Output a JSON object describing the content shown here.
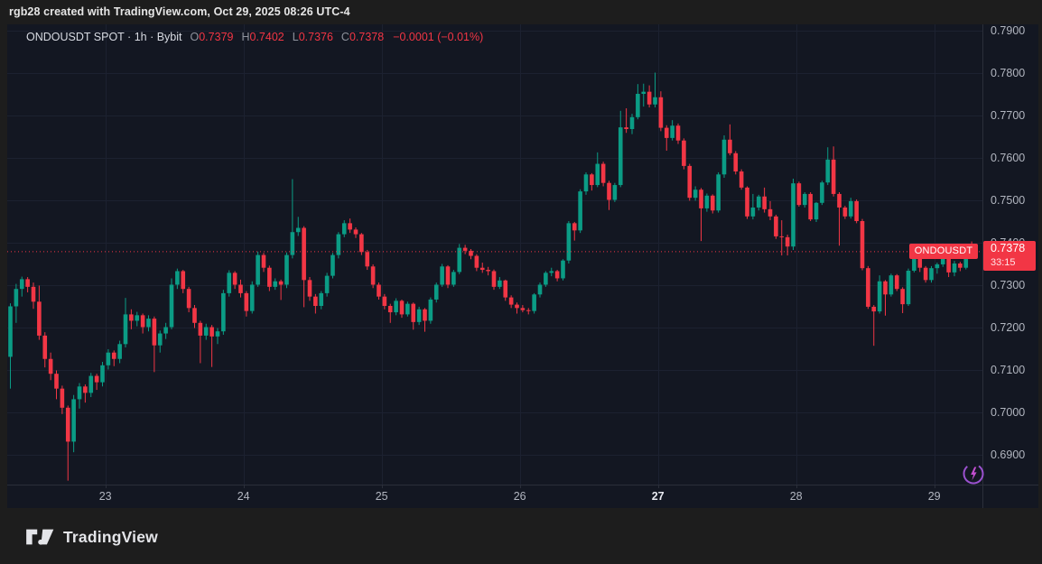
{
  "attribution": {
    "text": "rgb28 created with TradingView.com, Oct 29, 2025 08:26 UTC-4"
  },
  "legend": {
    "symbol_title": "ONDOUSDT SPOT · 1h · Bybit",
    "open_label": "O",
    "open_value": "0.7379",
    "high_label": "H",
    "high_value": "0.7402",
    "low_label": "L",
    "low_value": "0.7376",
    "close_label": "C",
    "close_value": "0.7378",
    "change_text": "−0.0001 (−0.01%)"
  },
  "price_line_label": {
    "symbol": "ONDOUSDT",
    "price": "0.7378",
    "countdown": "33:15"
  },
  "footer": {
    "brand_name": "TradingView"
  },
  "chart_data": {
    "type": "candlestick",
    "symbol": "ONDOUSDT",
    "market": "SPOT",
    "interval": "1h",
    "exchange": "Bybit",
    "current_bar": {
      "open": 0.7379,
      "high": 0.7402,
      "low": 0.7376,
      "close": 0.7378,
      "change": -0.0001,
      "change_pct": "-0.01%"
    },
    "last_price": 0.7378,
    "countdown": "33:15",
    "y_axis": {
      "top_value": 0.79,
      "ticks": [
        {
          "value": 0.79,
          "label": "0.7900"
        },
        {
          "value": 0.78,
          "label": "0.7800"
        },
        {
          "value": 0.77,
          "label": "0.7700"
        },
        {
          "value": 0.76,
          "label": "0.7600"
        },
        {
          "value": 0.75,
          "label": "0.7500"
        },
        {
          "value": 0.74,
          "label": "0.7400"
        },
        {
          "value": 0.73,
          "label": "0.7300"
        },
        {
          "value": 0.72,
          "label": "0.7200"
        },
        {
          "value": 0.71,
          "label": "0.7100"
        },
        {
          "value": 0.7,
          "label": "0.7000"
        },
        {
          "value": 0.69,
          "label": "0.6900"
        }
      ]
    },
    "x_axis": {
      "first_index": 16.5,
      "step": 24,
      "ticks": [
        {
          "label": "23",
          "bold": false
        },
        {
          "label": "24",
          "bold": false
        },
        {
          "label": "25",
          "bold": false
        },
        {
          "label": "26",
          "bold": false
        },
        {
          "label": "27",
          "bold": true
        },
        {
          "label": "28",
          "bold": false
        },
        {
          "label": "29",
          "bold": false
        }
      ]
    },
    "colors": {
      "up": "#0b9c85",
      "down": "#f23645",
      "grid": "#1c2130",
      "separator": "#2a2e39",
      "axis_text": "#b2b6c0",
      "axis_text_bold": "#e8eaf0",
      "price_line": "#f23645",
      "label_bg": "#f23645"
    },
    "candles": [
      [
        0.713,
        0.7256,
        0.7055,
        0.7249
      ],
      [
        0.7249,
        0.7302,
        0.721,
        0.729
      ],
      [
        0.729,
        0.7319,
        0.7272,
        0.7313
      ],
      [
        0.7313,
        0.7318,
        0.7282,
        0.7295
      ],
      [
        0.7295,
        0.7305,
        0.7243,
        0.726
      ],
      [
        0.726,
        0.7298,
        0.717,
        0.718
      ],
      [
        0.718,
        0.7188,
        0.7105,
        0.7125
      ],
      [
        0.7125,
        0.714,
        0.7075,
        0.709
      ],
      [
        0.709,
        0.7098,
        0.703,
        0.7055
      ],
      [
        0.7055,
        0.7062,
        0.6995,
        0.701
      ],
      [
        0.701,
        0.7015,
        0.6838,
        0.693
      ],
      [
        0.693,
        0.704,
        0.6905,
        0.703
      ],
      [
        0.703,
        0.7068,
        0.7008,
        0.706
      ],
      [
        0.706,
        0.7065,
        0.7022,
        0.7045
      ],
      [
        0.7045,
        0.7092,
        0.7035,
        0.7085
      ],
      [
        0.7085,
        0.709,
        0.7052,
        0.707
      ],
      [
        0.707,
        0.7118,
        0.706,
        0.711
      ],
      [
        0.711,
        0.7148,
        0.71,
        0.714
      ],
      [
        0.714,
        0.7145,
        0.7108,
        0.7125
      ],
      [
        0.7125,
        0.7168,
        0.7115,
        0.716
      ],
      [
        0.716,
        0.7269,
        0.7152,
        0.723
      ],
      [
        0.723,
        0.7242,
        0.7195,
        0.7215
      ],
      [
        0.7215,
        0.7236,
        0.7202,
        0.7228
      ],
      [
        0.7228,
        0.7232,
        0.7185,
        0.72
      ],
      [
        0.72,
        0.7228,
        0.719,
        0.722
      ],
      [
        0.722,
        0.7225,
        0.7094,
        0.7157
      ],
      [
        0.7157,
        0.7192,
        0.714,
        0.7185
      ],
      [
        0.7185,
        0.721,
        0.7172,
        0.72
      ],
      [
        0.72,
        0.7315,
        0.7195,
        0.73
      ],
      [
        0.73,
        0.7338,
        0.729,
        0.7332
      ],
      [
        0.7332,
        0.7335,
        0.728,
        0.729
      ],
      [
        0.729,
        0.7295,
        0.7235,
        0.7245
      ],
      [
        0.7245,
        0.7252,
        0.7198,
        0.721
      ],
      [
        0.721,
        0.7215,
        0.7115,
        0.718
      ],
      [
        0.718,
        0.7208,
        0.717,
        0.72
      ],
      [
        0.72,
        0.7205,
        0.7106,
        0.7178
      ],
      [
        0.7178,
        0.7198,
        0.716,
        0.719
      ],
      [
        0.719,
        0.7288,
        0.7182,
        0.728
      ],
      [
        0.728,
        0.7334,
        0.7272,
        0.7328
      ],
      [
        0.7328,
        0.7332,
        0.729,
        0.73
      ],
      [
        0.73,
        0.7312,
        0.727,
        0.728
      ],
      [
        0.728,
        0.7285,
        0.7225,
        0.7238
      ],
      [
        0.7238,
        0.7308,
        0.7232,
        0.73
      ],
      [
        0.73,
        0.7378,
        0.7295,
        0.737
      ],
      [
        0.737,
        0.7375,
        0.733,
        0.734
      ],
      [
        0.734,
        0.7345,
        0.7285,
        0.7295
      ],
      [
        0.7295,
        0.7315,
        0.7288,
        0.7308
      ],
      [
        0.7308,
        0.7312,
        0.7264,
        0.73
      ],
      [
        0.73,
        0.7376,
        0.7292,
        0.737
      ],
      [
        0.737,
        0.7549,
        0.7362,
        0.7424
      ],
      [
        0.7424,
        0.746,
        0.7415,
        0.7434
      ],
      [
        0.7434,
        0.7438,
        0.7247,
        0.7311
      ],
      [
        0.7311,
        0.7318,
        0.7262,
        0.7272
      ],
      [
        0.7272,
        0.7278,
        0.7232,
        0.725
      ],
      [
        0.725,
        0.7285,
        0.7242,
        0.728
      ],
      [
        0.728,
        0.7328,
        0.7272,
        0.7321
      ],
      [
        0.7321,
        0.7375,
        0.7315,
        0.737
      ],
      [
        0.737,
        0.7424,
        0.7362,
        0.7419
      ],
      [
        0.7419,
        0.7452,
        0.7412,
        0.7445
      ],
      [
        0.7445,
        0.7456,
        0.7422,
        0.743
      ],
      [
        0.743,
        0.7435,
        0.741,
        0.7419
      ],
      [
        0.7419,
        0.7422,
        0.737,
        0.7377
      ],
      [
        0.7377,
        0.7382,
        0.7335,
        0.7343
      ],
      [
        0.7343,
        0.7348,
        0.7292,
        0.73
      ],
      [
        0.73,
        0.7305,
        0.7265,
        0.7272
      ],
      [
        0.7272,
        0.7278,
        0.7242,
        0.725
      ],
      [
        0.725,
        0.7255,
        0.721,
        0.7235
      ],
      [
        0.7235,
        0.7268,
        0.7228,
        0.7262
      ],
      [
        0.7262,
        0.7265,
        0.7222,
        0.723
      ],
      [
        0.723,
        0.726,
        0.7225,
        0.7255
      ],
      [
        0.7255,
        0.7258,
        0.7194,
        0.7212
      ],
      [
        0.7212,
        0.7248,
        0.7205,
        0.7242
      ],
      [
        0.7242,
        0.7245,
        0.7189,
        0.7215
      ],
      [
        0.7215,
        0.727,
        0.7208,
        0.7265
      ],
      [
        0.7265,
        0.7305,
        0.7258,
        0.73
      ],
      [
        0.73,
        0.7349,
        0.7295,
        0.7343
      ],
      [
        0.7343,
        0.7346,
        0.7292,
        0.73
      ],
      [
        0.73,
        0.7335,
        0.7295,
        0.733
      ],
      [
        0.733,
        0.7396,
        0.7325,
        0.7387
      ],
      [
        0.7387,
        0.7394,
        0.7372,
        0.738
      ],
      [
        0.738,
        0.7384,
        0.736,
        0.7368
      ],
      [
        0.7368,
        0.7372,
        0.7332,
        0.734
      ],
      [
        0.734,
        0.7352,
        0.7328,
        0.7335
      ],
      [
        0.7335,
        0.7342,
        0.7322,
        0.7332
      ],
      [
        0.7332,
        0.7336,
        0.7288,
        0.7295
      ],
      [
        0.7295,
        0.7318,
        0.729,
        0.731
      ],
      [
        0.731,
        0.7312,
        0.7262,
        0.727
      ],
      [
        0.727,
        0.7275,
        0.7245,
        0.7253
      ],
      [
        0.7253,
        0.7258,
        0.7232,
        0.7245
      ],
      [
        0.7245,
        0.7252,
        0.7235,
        0.724
      ],
      [
        0.724,
        0.7245,
        0.723,
        0.7238
      ],
      [
        0.7238,
        0.728,
        0.7232,
        0.7277
      ],
      [
        0.7277,
        0.7305,
        0.727,
        0.73
      ],
      [
        0.73,
        0.7332,
        0.7295,
        0.7328
      ],
      [
        0.7328,
        0.734,
        0.732,
        0.7332
      ],
      [
        0.7332,
        0.7335,
        0.7308,
        0.7315
      ],
      [
        0.7315,
        0.736,
        0.731,
        0.7357
      ],
      [
        0.7357,
        0.745,
        0.735,
        0.7445
      ],
      [
        0.7445,
        0.7448,
        0.7404,
        0.7428
      ],
      [
        0.7428,
        0.7525,
        0.7422,
        0.752
      ],
      [
        0.752,
        0.7565,
        0.7512,
        0.756
      ],
      [
        0.756,
        0.7563,
        0.7522,
        0.7535
      ],
      [
        0.7535,
        0.7612,
        0.753,
        0.7585
      ],
      [
        0.7585,
        0.759,
        0.7532,
        0.754
      ],
      [
        0.754,
        0.7545,
        0.7476,
        0.75
      ],
      [
        0.75,
        0.754,
        0.7495,
        0.7535
      ],
      [
        0.7535,
        0.771,
        0.753,
        0.7671
      ],
      [
        0.7671,
        0.7716,
        0.7658,
        0.7667
      ],
      [
        0.7667,
        0.7703,
        0.7655,
        0.7695
      ],
      [
        0.7695,
        0.7773,
        0.769,
        0.775
      ],
      [
        0.775,
        0.7774,
        0.772,
        0.7755
      ],
      [
        0.7755,
        0.777,
        0.7718,
        0.7725
      ],
      [
        0.7725,
        0.78,
        0.7718,
        0.7742
      ],
      [
        0.7742,
        0.7756,
        0.7662,
        0.767
      ],
      [
        0.767,
        0.7676,
        0.7616,
        0.7646
      ],
      [
        0.7646,
        0.7688,
        0.764,
        0.7675
      ],
      [
        0.7675,
        0.768,
        0.7632,
        0.764
      ],
      [
        0.764,
        0.7645,
        0.7572,
        0.758
      ],
      [
        0.758,
        0.7585,
        0.7498,
        0.7505
      ],
      [
        0.7505,
        0.7532,
        0.7498,
        0.7524
      ],
      [
        0.7524,
        0.7528,
        0.7403,
        0.748
      ],
      [
        0.748,
        0.7515,
        0.7472,
        0.751
      ],
      [
        0.751,
        0.7513,
        0.7468,
        0.7475
      ],
      [
        0.7475,
        0.7565,
        0.747,
        0.756
      ],
      [
        0.756,
        0.7652,
        0.7552,
        0.7642
      ],
      [
        0.7642,
        0.7678,
        0.7605,
        0.761
      ],
      [
        0.761,
        0.7615,
        0.756,
        0.7567
      ],
      [
        0.7567,
        0.7572,
        0.7524,
        0.7529
      ],
      [
        0.7529,
        0.7532,
        0.7455,
        0.7461
      ],
      [
        0.7461,
        0.7514,
        0.7454,
        0.7482
      ],
      [
        0.7482,
        0.7512,
        0.7475,
        0.7508
      ],
      [
        0.7508,
        0.7529,
        0.747,
        0.7478
      ],
      [
        0.7478,
        0.7497,
        0.7452,
        0.7461
      ],
      [
        0.7461,
        0.7465,
        0.7408,
        0.7414
      ],
      [
        0.7414,
        0.7452,
        0.7369,
        0.7412
      ],
      [
        0.7412,
        0.7418,
        0.7369,
        0.739
      ],
      [
        0.739,
        0.755,
        0.7382,
        0.7539
      ],
      [
        0.7539,
        0.7543,
        0.7484,
        0.7488
      ],
      [
        0.7488,
        0.7518,
        0.7482,
        0.7514
      ],
      [
        0.7514,
        0.7518,
        0.745,
        0.7454
      ],
      [
        0.7454,
        0.7495,
        0.7448,
        0.7493
      ],
      [
        0.7493,
        0.7545,
        0.7488,
        0.7541
      ],
      [
        0.7541,
        0.7624,
        0.7535,
        0.7595
      ],
      [
        0.7595,
        0.7626,
        0.7508,
        0.7514
      ],
      [
        0.7514,
        0.7518,
        0.7392,
        0.7482
      ],
      [
        0.7482,
        0.7486,
        0.7455,
        0.7461
      ],
      [
        0.7461,
        0.7505,
        0.7456,
        0.7497
      ],
      [
        0.7497,
        0.7501,
        0.7445,
        0.745
      ],
      [
        0.745,
        0.7455,
        0.7334,
        0.7339
      ],
      [
        0.7339,
        0.7344,
        0.7243,
        0.7248
      ],
      [
        0.7248,
        0.7252,
        0.7156,
        0.7237
      ],
      [
        0.7237,
        0.7322,
        0.7232,
        0.7308
      ],
      [
        0.7308,
        0.7311,
        0.7227,
        0.7277
      ],
      [
        0.7277,
        0.7326,
        0.7272,
        0.7322
      ],
      [
        0.7322,
        0.7325,
        0.7285,
        0.729
      ],
      [
        0.729,
        0.7294,
        0.7233,
        0.7254
      ],
      [
        0.7254,
        0.7338,
        0.725,
        0.7333
      ],
      [
        0.7333,
        0.7373,
        0.7329,
        0.7365
      ],
      [
        0.7365,
        0.7369,
        0.733,
        0.734
      ],
      [
        0.734,
        0.7344,
        0.7305,
        0.7311
      ],
      [
        0.7311,
        0.7344,
        0.7305,
        0.7339
      ],
      [
        0.7339,
        0.7352,
        0.7326,
        0.7348
      ],
      [
        0.7348,
        0.7397,
        0.7342,
        0.7361
      ],
      [
        0.7361,
        0.7364,
        0.7318,
        0.7329
      ],
      [
        0.7329,
        0.7356,
        0.732,
        0.735
      ],
      [
        0.735,
        0.7354,
        0.7332,
        0.734
      ],
      [
        0.734,
        0.739,
        0.7336,
        0.7379
      ],
      [
        0.7379,
        0.7402,
        0.7376,
        0.7378
      ]
    ]
  }
}
